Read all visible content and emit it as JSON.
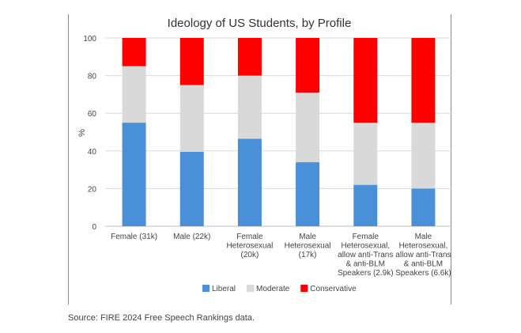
{
  "chart_data": {
    "type": "bar",
    "stacked": true,
    "title": "Ideology of US Students, by Profile",
    "ylabel": "%",
    "xlabel": "",
    "ylim": [
      0,
      100
    ],
    "yticks": [
      0,
      20,
      40,
      60,
      80,
      100
    ],
    "grid": true,
    "legend_position": "bottom",
    "categories": [
      [
        "Female (31k)"
      ],
      [
        "Male (22k)"
      ],
      [
        "Female",
        "Heterosexual",
        "(20k)"
      ],
      [
        "Male",
        "Heterosexual",
        "(17k)"
      ],
      [
        "Female",
        "Heterosexual,",
        "allow anti-Trans",
        "& anti-BLM",
        "Speakers (2.9k)"
      ],
      [
        "Male",
        "Heterosexual,",
        "allow anti-Trans",
        "& anti-BLM",
        "Speakers (6.6k)"
      ]
    ],
    "series": [
      {
        "name": "Liberal",
        "color": "#4a90d9",
        "values": [
          55,
          39.5,
          46.5,
          34,
          22,
          20
        ]
      },
      {
        "name": "Moderate",
        "color": "#d9d9d9",
        "values": [
          30,
          35.5,
          33.5,
          37,
          33,
          35
        ]
      },
      {
        "name": "Conservative",
        "color": "#ff0000",
        "values": [
          15,
          25,
          20,
          29,
          45,
          45
        ]
      }
    ]
  },
  "source": "Source: FIRE 2024 Free Speech Rankings data."
}
